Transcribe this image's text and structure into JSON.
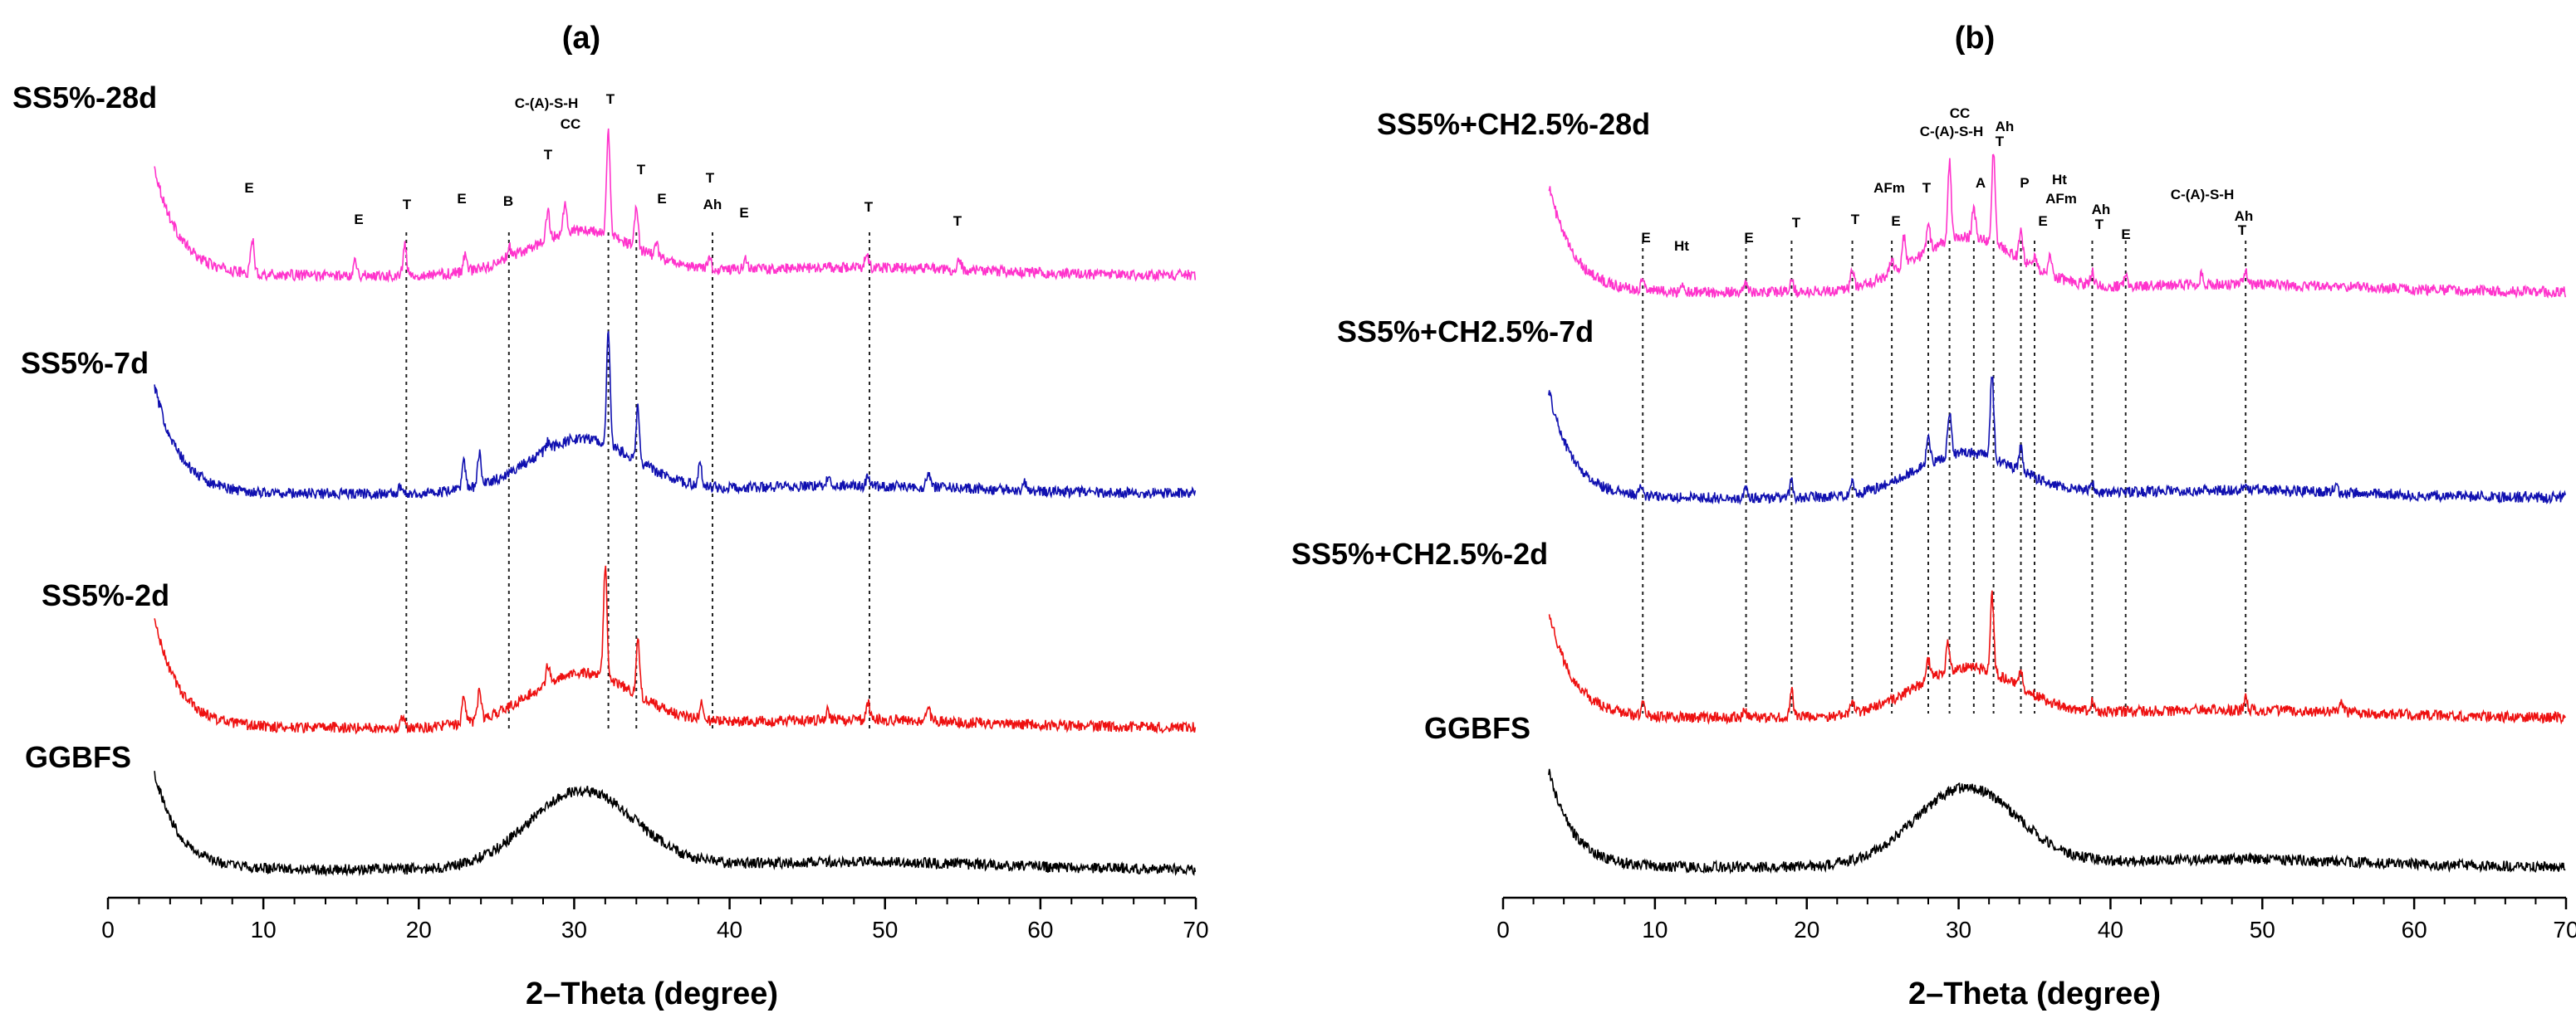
{
  "chart_data": [
    {
      "type": "line",
      "panel_label": "(a)",
      "xlabel": "2–Theta (degree)",
      "ylabel": "",
      "xlim": [
        0,
        70
      ],
      "x_ticks": [
        0,
        10,
        20,
        30,
        40,
        50,
        60,
        70
      ],
      "x_tick_labels": [
        "0",
        "10",
        "20",
        "30",
        "40",
        "50",
        "60",
        "70"
      ],
      "grid": false,
      "series": [
        {
          "name": "SS5%-28d",
          "color": "#ff33cc",
          "offset": 2.55,
          "start_rise": 1.0,
          "hump": 0.45,
          "peaks": [
            [
              9.3,
              0.34
            ],
            [
              15.9,
              0.16
            ],
            [
              19.1,
              0.3
            ],
            [
              23.0,
              0.2
            ],
            [
              25.8,
              0.12
            ],
            [
              28.3,
              0.28
            ],
            [
              29.4,
              0.3
            ],
            [
              32.2,
              1.05
            ],
            [
              34.0,
              0.42
            ],
            [
              35.3,
              0.12
            ],
            [
              38.7,
              0.12
            ],
            [
              41.0,
              0.12
            ],
            [
              48.8,
              0.16
            ],
            [
              54.8,
              0.1
            ]
          ]
        },
        {
          "name": "SS5%-7d",
          "color": "#1010b0",
          "offset": 1.35,
          "start_rise": 1.0,
          "hump": 0.55,
          "peaks": [
            [
              18.8,
              0.06
            ],
            [
              22.9,
              0.3
            ],
            [
              23.9,
              0.32
            ],
            [
              28.3,
              0.08
            ],
            [
              32.2,
              1.15
            ],
            [
              34.1,
              0.55
            ],
            [
              38.1,
              0.22
            ],
            [
              46.4,
              0.12
            ],
            [
              48.9,
              0.08
            ],
            [
              52.8,
              0.15
            ],
            [
              59.0,
              0.08
            ]
          ]
        },
        {
          "name": "SS5%-2d",
          "color": "#ee1111",
          "offset": 0.72,
          "start_rise": 1.0,
          "hump": 0.55,
          "peaks": [
            [
              19.0,
              0.12
            ],
            [
              22.9,
              0.28
            ],
            [
              23.9,
              0.3
            ],
            [
              28.3,
              0.18
            ],
            [
              32.0,
              1.15
            ],
            [
              34.1,
              0.6
            ],
            [
              38.2,
              0.16
            ],
            [
              46.3,
              0.1
            ],
            [
              48.9,
              0.18
            ],
            [
              52.8,
              0.12
            ]
          ]
        },
        {
          "name": "GGBFS",
          "color": "#000000",
          "offset": 0.0,
          "start_rise": 0.9,
          "hump": 0.8,
          "peaks": []
        }
      ],
      "peak_annotations": [
        {
          "text": "E",
          "x": 9.3
        },
        {
          "text": "E",
          "x": 15.9
        },
        {
          "text": "T",
          "x": 19.1
        },
        {
          "text": "E",
          "x": 23.0
        },
        {
          "text": "B",
          "x": 25.8
        },
        {
          "text": "T",
          "x": 28.3
        },
        {
          "text": "C-(A)-S-H",
          "x": 28.3
        },
        {
          "text": "CC",
          "x": 29.4
        },
        {
          "text": "T",
          "x": 32.3
        },
        {
          "text": "T",
          "x": 34.0
        },
        {
          "text": "E",
          "x": 35.3
        },
        {
          "text": "T",
          "x": 38.9
        },
        {
          "text": "Ah",
          "x": 38.9
        },
        {
          "text": "E",
          "x": 41.0
        },
        {
          "text": "T",
          "x": 49.0
        },
        {
          "text": "T",
          "x": 54.8
        }
      ],
      "reference_lines_x": [
        19.2,
        25.8,
        32.2,
        34.0,
        38.9,
        49.0
      ]
    },
    {
      "type": "line",
      "panel_label": "(b)",
      "xlabel": "2–Theta (degree)",
      "ylabel": "",
      "xlim": [
        0,
        70
      ],
      "x_ticks": [
        0,
        10,
        20,
        30,
        40,
        50,
        60,
        70
      ],
      "x_tick_labels": [
        "0",
        "10",
        "20",
        "30",
        "40",
        "50",
        "60",
        "70"
      ],
      "grid": false,
      "series": [
        {
          "name": "SS5%+CH2.5%-28d",
          "color": "#ff33cc",
          "offset": 2.5,
          "start_rise": 1.0,
          "hump": 0.55,
          "peaks": [
            [
              9.2,
              0.12
            ],
            [
              11.9,
              0.05
            ],
            [
              16.0,
              0.12
            ],
            [
              19.0,
              0.16
            ],
            [
              23.0,
              0.16
            ],
            [
              25.6,
              0.14
            ],
            [
              26.4,
              0.3
            ],
            [
              28.0,
              0.28
            ],
            [
              29.4,
              0.8
            ],
            [
              31.0,
              0.3
            ],
            [
              32.3,
              0.95
            ],
            [
              34.1,
              0.3
            ],
            [
              35.0,
              0.12
            ],
            [
              36.0,
              0.2
            ],
            [
              38.8,
              0.14
            ],
            [
              41.0,
              0.1
            ],
            [
              46.0,
              0.1
            ],
            [
              48.9,
              0.12
            ]
          ]
        },
        {
          "name": "SS5%+CH2.5%-7d",
          "color": "#1010b0",
          "offset": 1.4,
          "start_rise": 1.0,
          "hump": 0.45,
          "peaks": [
            [
              9.1,
              0.08
            ],
            [
              16.0,
              0.08
            ],
            [
              19.0,
              0.16
            ],
            [
              23.0,
              0.1
            ],
            [
              28.0,
              0.32
            ],
            [
              29.4,
              0.45
            ],
            [
              32.2,
              0.85
            ],
            [
              34.1,
              0.25
            ],
            [
              38.8,
              0.08
            ],
            [
              48.9,
              0.08
            ],
            [
              54.8,
              0.06
            ]
          ]
        },
        {
          "name": "SS5%+CH2.5%-2d",
          "color": "#ee1111",
          "offset": 0.72,
          "start_rise": 1.0,
          "hump": 0.5,
          "peaks": [
            [
              9.2,
              0.14
            ],
            [
              15.9,
              0.08
            ],
            [
              19.0,
              0.28
            ],
            [
              23.0,
              0.14
            ],
            [
              28.0,
              0.2
            ],
            [
              29.3,
              0.3
            ],
            [
              32.2,
              0.8
            ],
            [
              34.1,
              0.18
            ],
            [
              38.8,
              0.1
            ],
            [
              48.9,
              0.12
            ],
            [
              55.2,
              0.08
            ]
          ]
        },
        {
          "name": "GGBFS",
          "color": "#000000",
          "offset": 0.0,
          "start_rise": 0.9,
          "hump": 0.8,
          "peaks": []
        }
      ],
      "peak_annotations": [
        {
          "text": "E",
          "x": 9.3
        },
        {
          "text": "Ht",
          "x": 11.9
        },
        {
          "text": "E",
          "x": 16.0
        },
        {
          "text": "T",
          "x": 19.0
        },
        {
          "text": "T",
          "x": 23.0
        },
        {
          "text": "E",
          "x": 25.7
        },
        {
          "text": "AFm",
          "x": 26.4
        },
        {
          "text": "T",
          "x": 28.0
        },
        {
          "text": "CC",
          "x": 29.4
        },
        {
          "text": "C-(A)-S-H",
          "x": 29.4
        },
        {
          "text": "A",
          "x": 31.1
        },
        {
          "text": "Ah",
          "x": 32.6
        },
        {
          "text": "T",
          "x": 32.3
        },
        {
          "text": "P",
          "x": 34.1
        },
        {
          "text": "E",
          "x": 35.0
        },
        {
          "text": "Ht",
          "x": 36.3
        },
        {
          "text": "AFm",
          "x": 36.3
        },
        {
          "text": "Ah",
          "x": 38.8
        },
        {
          "text": "T",
          "x": 38.8
        },
        {
          "text": "E",
          "x": 41.0
        },
        {
          "text": "C-(A)-S-H",
          "x": 46.0
        },
        {
          "text": "Ah",
          "x": 48.9
        },
        {
          "text": "T",
          "x": 48.9
        }
      ],
      "reference_lines_x": [
        9.2,
        16.0,
        19.0,
        23.0,
        25.6,
        28.0,
        29.4,
        31.0,
        32.3,
        34.1,
        35.0,
        38.8,
        41.0,
        48.9
      ]
    }
  ]
}
